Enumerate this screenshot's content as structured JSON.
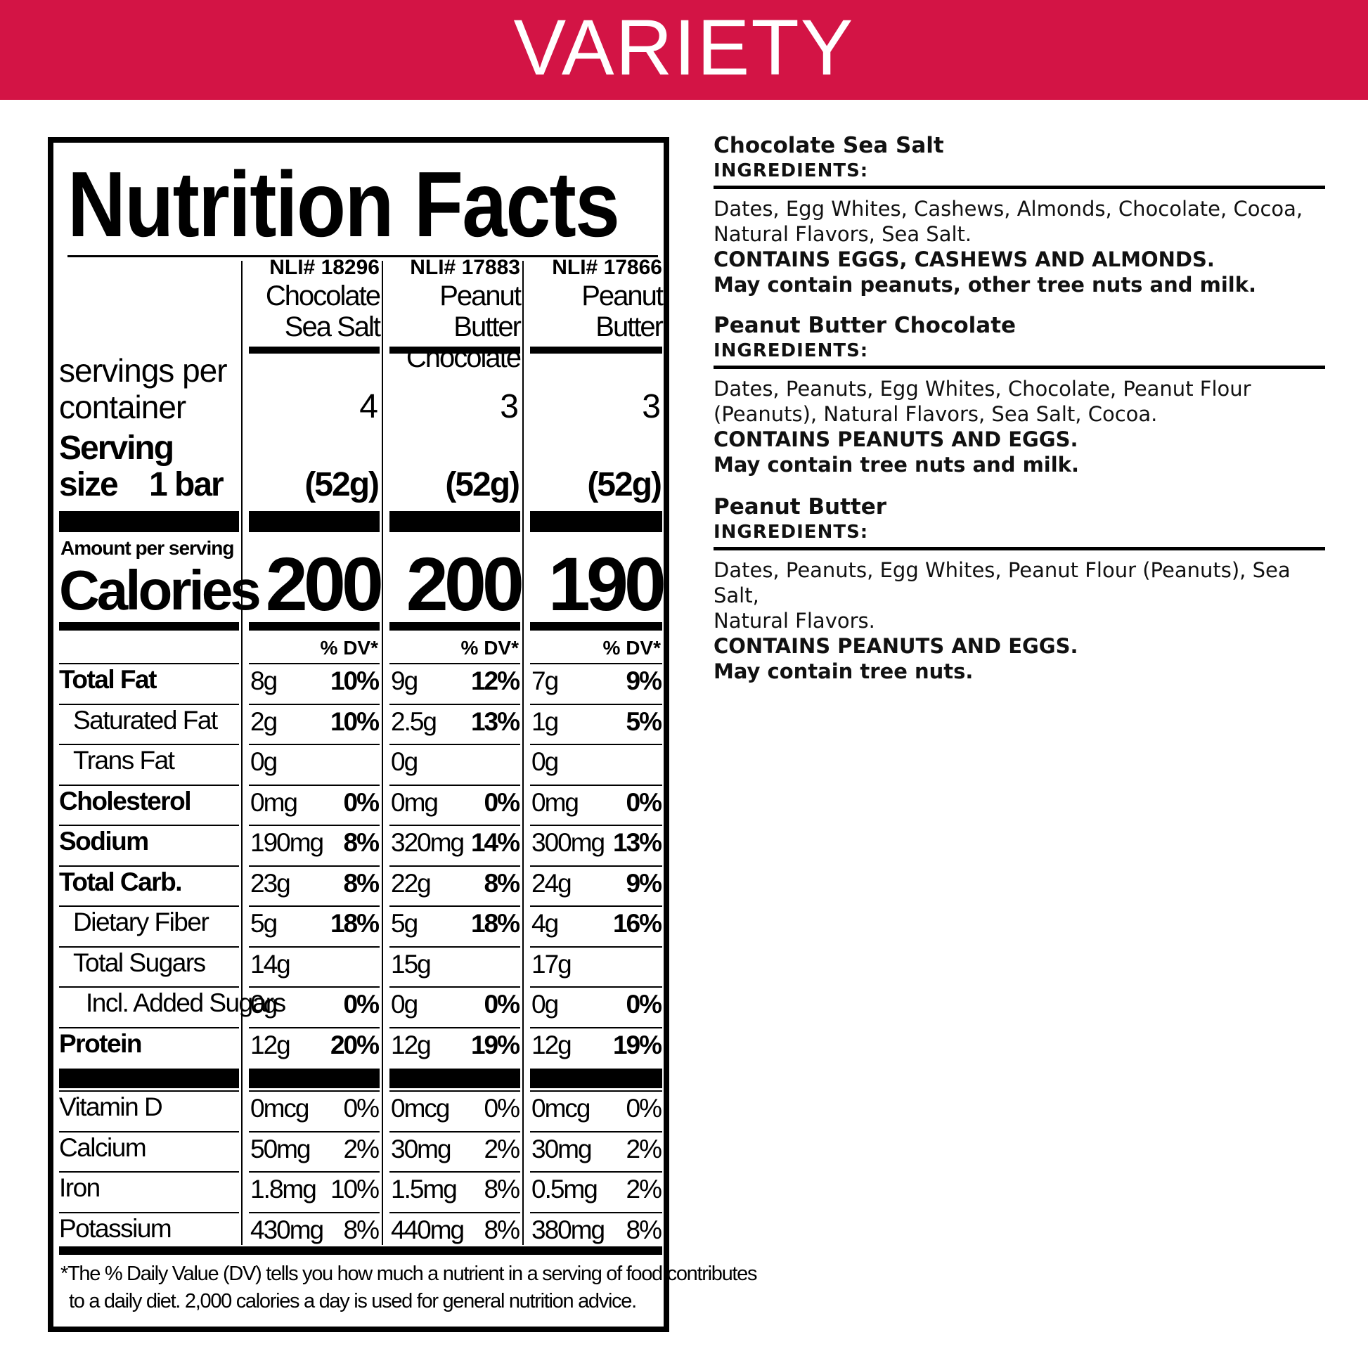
{
  "banner": {
    "title": "VARIETY"
  },
  "label": {
    "title": "Nutrition Facts",
    "products": [
      {
        "nli": "NLI# 18296",
        "name_line1": "Chocolate",
        "name_line2": "Sea Salt",
        "servings": "4",
        "serving_grams": "(52g)",
        "calories": "200"
      },
      {
        "nli": "NLI# 17883",
        "name_line1": "Peanut Butter",
        "name_line2": "Chocolate",
        "servings": "3",
        "serving_grams": "(52g)",
        "calories": "200"
      },
      {
        "nli": "NLI# 17866",
        "name_line1": "Peanut",
        "name_line2": "Butter",
        "servings": "3",
        "serving_grams": "(52g)",
        "calories": "190"
      }
    ],
    "servings_label_line1": "servings per",
    "servings_label_line2": "container",
    "serving_size_line1": "Serving",
    "serving_size_line2": "size",
    "serving_size_value": "1 bar",
    "amount_per_serving": "Amount per serving",
    "calories_label": "Calories",
    "dv_header": "% DV*",
    "nutrients": [
      {
        "label": "Total Fat",
        "bold": true,
        "indent": 0,
        "values": [
          [
            "8g",
            "10%"
          ],
          [
            "9g",
            "12%"
          ],
          [
            "7g",
            "9%"
          ]
        ]
      },
      {
        "label": "Saturated Fat",
        "bold": false,
        "indent": 1,
        "values": [
          [
            "2g",
            "10%"
          ],
          [
            "2.5g",
            "13%"
          ],
          [
            "1g",
            "5%"
          ]
        ]
      },
      {
        "label": "Trans Fat",
        "bold": false,
        "indent": 1,
        "values": [
          [
            "0g",
            ""
          ],
          [
            "0g",
            ""
          ],
          [
            "0g",
            ""
          ]
        ]
      },
      {
        "label": "Cholesterol",
        "bold": true,
        "indent": 0,
        "values": [
          [
            "0mg",
            "0%"
          ],
          [
            "0mg",
            "0%"
          ],
          [
            "0mg",
            "0%"
          ]
        ]
      },
      {
        "label": "Sodium",
        "bold": true,
        "indent": 0,
        "values": [
          [
            "190mg",
            "8%"
          ],
          [
            "320mg",
            "14%"
          ],
          [
            "300mg",
            "13%"
          ]
        ]
      },
      {
        "label": "Total Carb.",
        "bold": true,
        "indent": 0,
        "values": [
          [
            "23g",
            "8%"
          ],
          [
            "22g",
            "8%"
          ],
          [
            "24g",
            "9%"
          ]
        ]
      },
      {
        "label": "Dietary Fiber",
        "bold": false,
        "indent": 1,
        "values": [
          [
            "5g",
            "18%"
          ],
          [
            "5g",
            "18%"
          ],
          [
            "4g",
            "16%"
          ]
        ]
      },
      {
        "label": "Total Sugars",
        "bold": false,
        "indent": 1,
        "values": [
          [
            "14g",
            ""
          ],
          [
            "15g",
            ""
          ],
          [
            "17g",
            ""
          ]
        ]
      },
      {
        "label": "Incl. Added Sugars",
        "bold": false,
        "indent": 2,
        "values": [
          [
            "0g",
            "0%"
          ],
          [
            "0g",
            "0%"
          ],
          [
            "0g",
            "0%"
          ]
        ]
      },
      {
        "label": "Protein",
        "bold": true,
        "indent": 0,
        "values": [
          [
            "12g",
            "20%"
          ],
          [
            "12g",
            "19%"
          ],
          [
            "12g",
            "19%"
          ]
        ]
      }
    ],
    "vitamins": [
      {
        "label": "Vitamin D",
        "values": [
          [
            "0mcg",
            "0%"
          ],
          [
            "0mcg",
            "0%"
          ],
          [
            "0mcg",
            "0%"
          ]
        ]
      },
      {
        "label": "Calcium",
        "values": [
          [
            "50mg",
            "2%"
          ],
          [
            "30mg",
            "2%"
          ],
          [
            "30mg",
            "2%"
          ]
        ]
      },
      {
        "label": "Iron",
        "values": [
          [
            "1.8mg",
            "10%"
          ],
          [
            "1.5mg",
            "8%"
          ],
          [
            "0.5mg",
            "2%"
          ]
        ]
      },
      {
        "label": "Potassium",
        "values": [
          [
            "430mg",
            "8%"
          ],
          [
            "440mg",
            "8%"
          ],
          [
            "380mg",
            "8%"
          ]
        ]
      }
    ],
    "footnote_line1": "*The % Daily Value (DV) tells you how much a nutrient in a serving of food contributes",
    "footnote_line2": "to a daily diet. 2,000 calories a day is used for general nutrition advice."
  },
  "ingredients": [
    {
      "name": "Chocolate Sea Salt",
      "label": "INGREDIENTS:",
      "text_line1": "Dates, Egg Whites, Cashews, Almonds, Chocolate, Cocoa,",
      "text_line2": "Natural Flavors, Sea Salt.",
      "contains": "CONTAINS EGGS, CASHEWS AND ALMONDS.",
      "may_contain": "May contain peanuts, other tree nuts and milk."
    },
    {
      "name": "Peanut Butter Chocolate",
      "label": "INGREDIENTS:",
      "text_line1": "Dates, Peanuts, Egg Whites, Chocolate, Peanut Flour",
      "text_line2": "(Peanuts), Natural Flavors, Sea Salt, Cocoa.",
      "contains": "CONTAINS PEANUTS AND EGGS.",
      "may_contain": "May contain tree nuts and milk."
    },
    {
      "name": "Peanut Butter",
      "label": "INGREDIENTS:",
      "text_line1": "Dates, Peanuts, Egg Whites, Peanut Flour (Peanuts), Sea Salt,",
      "text_line2": "Natural Flavors.",
      "contains": "CONTAINS PEANUTS AND EGGS.",
      "may_contain": "May contain tree nuts."
    }
  ]
}
